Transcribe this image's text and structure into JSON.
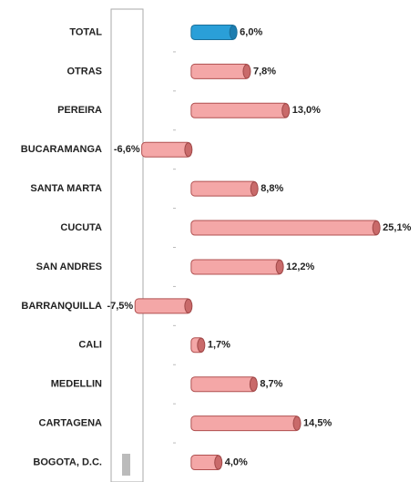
{
  "chart_data": {
    "type": "bar",
    "orientation": "horizontal",
    "categories": [
      "TOTAL",
      "OTRAS",
      "PEREIRA",
      "BUCARAMANGA",
      "SANTA MARTA",
      "CUCUTA",
      "SAN ANDRES",
      "BARRANQUILLA",
      "CALI",
      "MEDELLIN",
      "CARTAGENA",
      "BOGOTA, D.C."
    ],
    "values": [
      6.0,
      7.8,
      13.0,
      -6.6,
      8.8,
      25.1,
      12.2,
      -7.5,
      1.7,
      8.7,
      14.5,
      4.0
    ],
    "value_labels": [
      "6,0%",
      "7,8%",
      "13,0%",
      "-6,6%",
      "8,8%",
      "25,1%",
      "12,2%",
      "-7,5%",
      "1,7%",
      "8,7%",
      "14,5%",
      "4,0%"
    ],
    "colors": [
      "#2a9fd8",
      "#f4a7a7",
      "#f4a7a7",
      "#f4a7a7",
      "#f4a7a7",
      "#f4a7a7",
      "#f4a7a7",
      "#f4a7a7",
      "#f4a7a7",
      "#f4a7a7",
      "#f4a7a7",
      "#f4a7a7"
    ],
    "xlim": [
      -8.5,
      28
    ]
  }
}
